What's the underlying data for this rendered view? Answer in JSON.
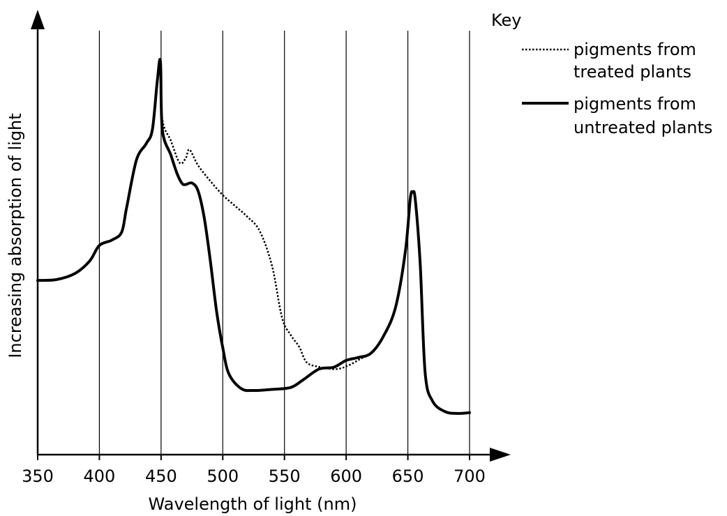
{
  "chart_data": {
    "type": "line",
    "title": "",
    "xlabel": "Wavelength of light (nm)",
    "ylabel": "Increasing absorption of light",
    "xlim": [
      350,
      700
    ],
    "ylim": [
      0,
      100
    ],
    "x_ticks": [
      "350",
      "400",
      "450",
      "500",
      "550",
      "600",
      "650",
      "700"
    ],
    "grid": "vertical lines at x ticks 400–700",
    "y_axis_unlabeled": true,
    "legend": {
      "title": "Key",
      "placement": "top-right, outside plot",
      "entries": [
        {
          "line1": "pigments from",
          "line2": "treated plants",
          "style": "dotted"
        },
        {
          "line1": "pigments from",
          "line2": "untreated plants",
          "style": "solid"
        }
      ]
    },
    "series": [
      {
        "style": "dotted",
        "points": [
          [
            350,
            40.8
          ],
          [
            365,
            41
          ],
          [
            380,
            42.6
          ],
          [
            392,
            45.9
          ],
          [
            400,
            50.1
          ],
          [
            410,
            51.5
          ],
          [
            418,
            53.6
          ],
          [
            422,
            60
          ],
          [
            430,
            72.8
          ],
          [
            438,
            77.2
          ],
          [
            443,
            81
          ],
          [
            447,
            94.1
          ],
          [
            449.5,
            99
          ],
          [
            451,
            83.8
          ],
          [
            458,
            77.9
          ],
          [
            465,
            72.1
          ],
          [
            470,
            73.3
          ],
          [
            473,
            75.6
          ],
          [
            480,
            71.4
          ],
          [
            490,
            67.2
          ],
          [
            500,
            63.5
          ],
          [
            510,
            60.6
          ],
          [
            520,
            57.7
          ],
          [
            530,
            53.9
          ],
          [
            540,
            44.6
          ],
          [
            548,
            30.9
          ],
          [
            555,
            26.3
          ],
          [
            562,
            23.1
          ],
          [
            568,
            19
          ],
          [
            578,
            17.8
          ],
          [
            592,
            17.2
          ],
          [
            602,
            18.2
          ],
          [
            612,
            20
          ],
          [
            620,
            21.4
          ],
          [
            630,
            25.8
          ],
          [
            640,
            33.6
          ],
          [
            648,
            48.5
          ],
          [
            652,
            62.6
          ],
          [
            654,
            64.2
          ],
          [
            656,
            62.3
          ],
          [
            660,
            45.1
          ],
          [
            664,
            16.3
          ],
          [
            670,
            8.7
          ],
          [
            680,
            5.9
          ],
          [
            690,
            5.4
          ],
          [
            700,
            5.6
          ]
        ]
      },
      {
        "style": "solid",
        "points": [
          [
            350,
            40.8
          ],
          [
            365,
            41
          ],
          [
            380,
            42.6
          ],
          [
            392,
            45.9
          ],
          [
            400,
            50.1
          ],
          [
            410,
            51.5
          ],
          [
            418,
            53.6
          ],
          [
            422,
            60
          ],
          [
            430,
            72.8
          ],
          [
            438,
            77.2
          ],
          [
            443,
            81
          ],
          [
            447,
            94.1
          ],
          [
            449.5,
            99
          ],
          [
            451,
            81
          ],
          [
            458,
            74.1
          ],
          [
            463,
            69.2
          ],
          [
            467,
            66.6
          ],
          [
            470,
            66.3
          ],
          [
            475,
            66.7
          ],
          [
            480,
            64.6
          ],
          [
            485,
            57.4
          ],
          [
            490,
            45.8
          ],
          [
            495,
            32.6
          ],
          [
            500,
            22.9
          ],
          [
            505,
            15.9
          ],
          [
            515,
            12
          ],
          [
            525,
            11.5
          ],
          [
            540,
            11.8
          ],
          [
            555,
            12.3
          ],
          [
            565,
            14.3
          ],
          [
            578,
            17.2
          ],
          [
            590,
            17.7
          ],
          [
            600,
            19.5
          ],
          [
            610,
            20.3
          ],
          [
            620,
            21.4
          ],
          [
            630,
            25.8
          ],
          [
            640,
            33.6
          ],
          [
            648,
            48.5
          ],
          [
            652,
            62.6
          ],
          [
            654,
            64.2
          ],
          [
            656,
            62.3
          ],
          [
            660,
            45.1
          ],
          [
            664,
            16.3
          ],
          [
            670,
            8.7
          ],
          [
            680,
            5.9
          ],
          [
            690,
            5.4
          ],
          [
            700,
            5.6
          ]
        ]
      }
    ]
  }
}
